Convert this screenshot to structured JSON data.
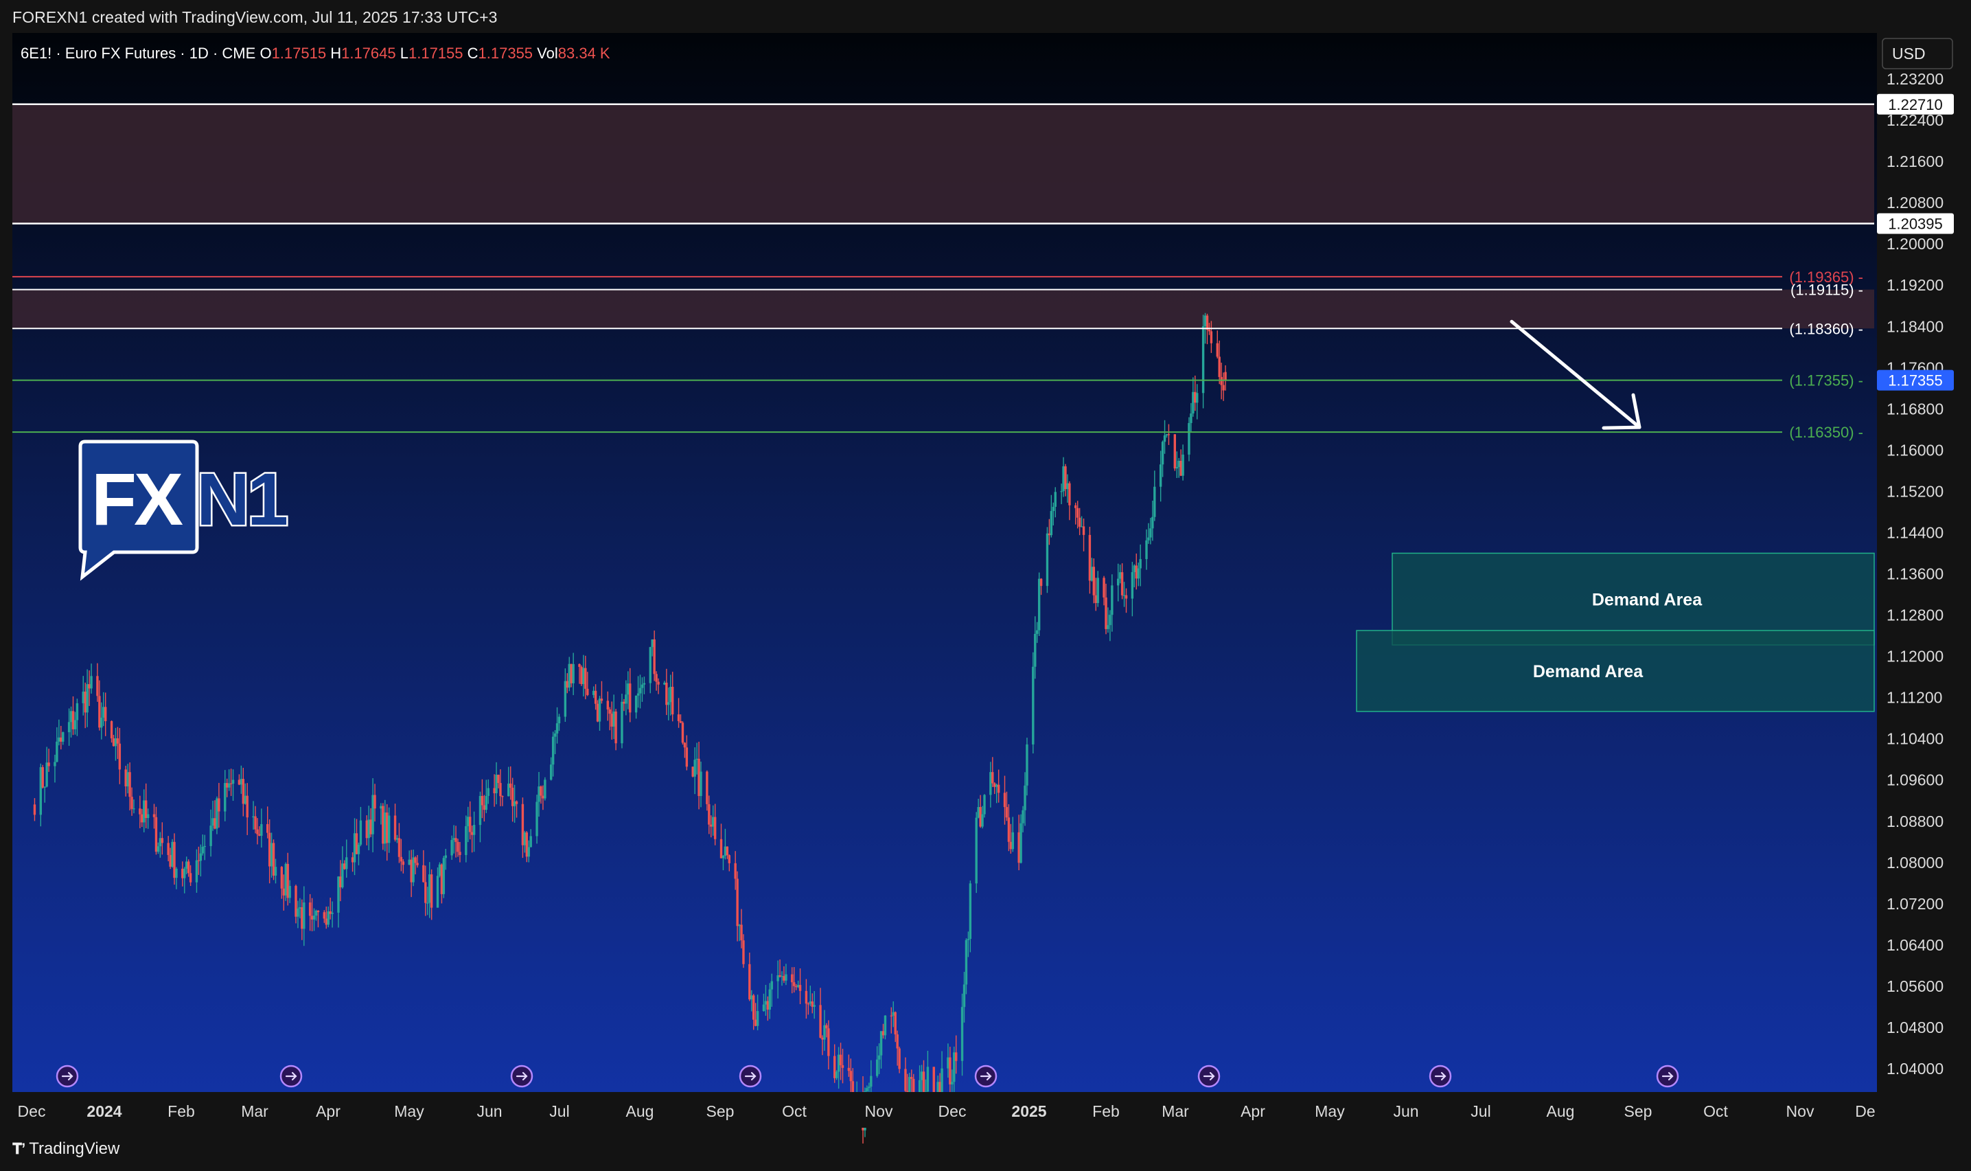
{
  "caption": "FOREXN1 created with TradingView.com, Jul 11, 2025 17:33 UTC+3",
  "footer_brand": "TradingView",
  "footer_icon": "tradingview-logo-icon",
  "currency": "USD",
  "symbol_line": {
    "symbol": "6E1! · Euro FX Futures · 1D · CME",
    "o_label": "O",
    "o": "1.17515",
    "h_label": "H",
    "h": "1.17645",
    "l_label": "L",
    "l": "1.17155",
    "c_label": "C",
    "c": "1.17355",
    "vol_label": "Vol",
    "vol": "83.34 K"
  },
  "logo": {
    "text_left": "FX",
    "text_right": "N1"
  },
  "zones": [
    {
      "label": "Demand Area",
      "top": 1.14,
      "bottom": 1.1222
    },
    {
      "label": "Demand Area",
      "top": 1.125,
      "bottom": 1.1093
    }
  ],
  "resistance_bands": [
    {
      "top": 1.2271,
      "bottom": 1.20395
    },
    {
      "top": 1.19115,
      "bottom": 1.1836
    }
  ],
  "level_lines": [
    {
      "price": 1.2271,
      "label": "1.22710",
      "kind": "white-badge"
    },
    {
      "price": 1.20395,
      "label": "1.20395",
      "kind": "white-badge"
    },
    {
      "price": 1.19365,
      "label": "(1.19365)",
      "kind": "red"
    },
    {
      "price": 1.19115,
      "label": "(1.19115)",
      "kind": "white"
    },
    {
      "price": 1.1836,
      "label": "(1.18360)",
      "kind": "white"
    },
    {
      "price": 1.17355,
      "label": "(1.17355)",
      "kind": "green"
    },
    {
      "price": 1.1635,
      "label": "(1.16350)",
      "kind": "green"
    }
  ],
  "last_price_badge": "1.17355",
  "colors": {
    "up": "#26a69a",
    "down": "#ef5350",
    "zone_fill": "#0d4d50",
    "band_fill": "#3a2530",
    "accent_blue": "#2962ff"
  },
  "chart_data": {
    "type": "candlestick",
    "title": "6E1! · Euro FX Futures · 1D · CME",
    "ylim": [
      1.034,
      1.239
    ],
    "y_ticks": [
      "1.23200",
      "1.22400",
      "1.21600",
      "1.20800",
      "1.20000",
      "1.19200",
      "1.18400",
      "1.17600",
      "1.16800",
      "1.16000",
      "1.15200",
      "1.14400",
      "1.13600",
      "1.12800",
      "1.12000",
      "1.11200",
      "1.10400",
      "1.09600",
      "1.08800",
      "1.08000",
      "1.07200",
      "1.06400",
      "1.05600",
      "1.04800",
      "1.04000"
    ],
    "x_ticks": [
      {
        "label": "Dec",
        "bold": false
      },
      {
        "label": "2024",
        "bold": true
      },
      {
        "label": "Feb",
        "bold": false
      },
      {
        "label": "Mar",
        "bold": false
      },
      {
        "label": "Apr",
        "bold": false
      },
      {
        "label": "May",
        "bold": false
      },
      {
        "label": "Jun",
        "bold": false
      },
      {
        "label": "Jul",
        "bold": false
      },
      {
        "label": "Aug",
        "bold": false
      },
      {
        "label": "Sep",
        "bold": false
      },
      {
        "label": "Oct",
        "bold": false
      },
      {
        "label": "Nov",
        "bold": false
      },
      {
        "label": "Dec",
        "bold": false
      },
      {
        "label": "2025",
        "bold": true
      },
      {
        "label": "Feb",
        "bold": false
      },
      {
        "label": "Mar",
        "bold": false
      },
      {
        "label": "Apr",
        "bold": false
      },
      {
        "label": "May",
        "bold": false
      },
      {
        "label": "Jun",
        "bold": false
      },
      {
        "label": "Jul",
        "bold": false
      },
      {
        "label": "Aug",
        "bold": false
      },
      {
        "label": "Sep",
        "bold": false
      },
      {
        "label": "Oct",
        "bold": false
      },
      {
        "label": "Nov",
        "bold": false
      },
      {
        "label": "De",
        "bold": false
      }
    ],
    "anchors": [
      [
        "2023-12-01",
        1.093
      ],
      [
        "2023-12-28",
        1.114
      ],
      [
        "2024-01-20",
        1.091
      ],
      [
        "2024-02-14",
        1.077
      ],
      [
        "2024-03-08",
        1.096
      ],
      [
        "2024-04-16",
        1.066
      ],
      [
        "2024-05-16",
        1.09
      ],
      [
        "2024-06-14",
        1.074
      ],
      [
        "2024-07-17",
        1.096
      ],
      [
        "2024-08-01",
        1.083
      ],
      [
        "2024-08-23",
        1.12
      ],
      [
        "2024-09-11",
        1.105
      ],
      [
        "2024-09-30",
        1.121
      ],
      [
        "2024-11-01",
        1.087
      ],
      [
        "2024-11-08",
        1.08
      ],
      [
        "2024-11-22",
        1.048
      ],
      [
        "2024-12-06",
        1.059
      ],
      [
        "2025-01-13",
        1.031
      ],
      [
        "2025-01-27",
        1.052
      ],
      [
        "2025-02-03",
        1.035
      ],
      [
        "2025-02-28",
        1.04
      ],
      [
        "2025-03-10",
        1.088
      ],
      [
        "2025-03-18",
        1.095
      ],
      [
        "2025-03-31",
        1.082
      ],
      [
        "2025-04-11",
        1.137
      ],
      [
        "2025-04-21",
        1.155
      ],
      [
        "2025-05-12",
        1.128
      ],
      [
        "2025-05-30",
        1.139
      ],
      [
        "2025-06-12",
        1.163
      ],
      [
        "2025-06-19",
        1.153
      ],
      [
        "2025-07-01",
        1.185
      ],
      [
        "2025-07-11",
        1.1736
      ]
    ],
    "events_dates": [
      "2023-12-13",
      "2024-01-31",
      "2024-03-20",
      "2024-05-01",
      "2024-06-12",
      "2024-07-31",
      "2024-09-18",
      "2024-11-07",
      "2024-12-18",
      "2025-01-29",
      "2025-03-19",
      "2025-05-07",
      "2025-06-18",
      "2025-07-30"
    ],
    "projection": {
      "from_date": "2025-07-08",
      "from_price": 1.1836,
      "to_date": "2025-08-15",
      "to_price": 1.1635
    },
    "last": {
      "open": 1.17515,
      "high": 1.17645,
      "low": 1.17155,
      "close": 1.17355,
      "volume": "83.34 K"
    }
  }
}
